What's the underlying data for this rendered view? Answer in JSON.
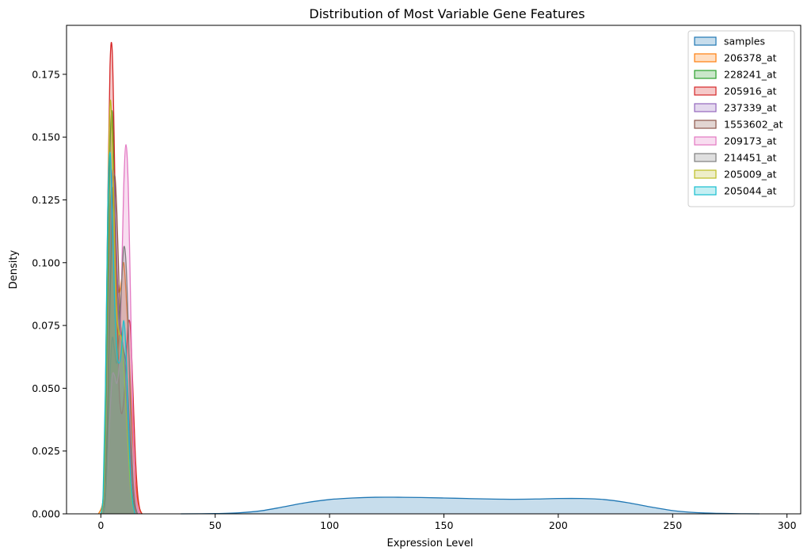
{
  "chart_data": {
    "type": "area",
    "title": "Distribution of Most Variable Gene Features",
    "xlabel": "Expression Level",
    "ylabel": "Density",
    "xlim": [
      -15,
      306
    ],
    "ylim": [
      0,
      0.1945
    ],
    "xticks": [
      0,
      50,
      100,
      150,
      200,
      250,
      300
    ],
    "yticks": [
      0.0,
      0.025,
      0.05,
      0.075,
      0.1,
      0.125,
      0.15,
      0.175
    ],
    "ytick_labels": [
      "0.000",
      "0.025",
      "0.050",
      "0.075",
      "0.100",
      "0.125",
      "0.150",
      "0.175"
    ],
    "legend_position": "top-right",
    "grid": false,
    "series": [
      {
        "name": "samples",
        "color": "#1f77b4",
        "x": [
          35,
          50,
          60,
          70,
          80,
          90,
          100,
          110,
          120,
          130,
          140,
          150,
          160,
          170,
          180,
          190,
          200,
          210,
          220,
          230,
          240,
          250,
          260,
          270,
          280,
          288
        ],
        "y": [
          0.0,
          0.0001,
          0.0004,
          0.0012,
          0.0028,
          0.0045,
          0.0057,
          0.0063,
          0.0066,
          0.0066,
          0.0065,
          0.0063,
          0.0061,
          0.0059,
          0.0058,
          0.0059,
          0.0061,
          0.0061,
          0.0057,
          0.0045,
          0.0028,
          0.0013,
          0.0005,
          0.0002,
          5e-05,
          0.0
        ]
      },
      {
        "name": "206378_at",
        "color": "#ff7f0e",
        "x": [
          -1,
          1,
          2,
          3,
          4,
          5,
          6,
          7,
          8,
          9,
          10,
          11,
          12,
          13,
          14,
          15,
          16,
          17,
          18
        ],
        "y": [
          0.0,
          0.006,
          0.03,
          0.075,
          0.118,
          0.13,
          0.115,
          0.095,
          0.088,
          0.093,
          0.1,
          0.088,
          0.07,
          0.05,
          0.03,
          0.015,
          0.006,
          0.002,
          0.0
        ]
      },
      {
        "name": "228241_at",
        "color": "#2ca02c",
        "x": [
          0,
          1,
          2,
          3,
          4,
          5,
          6,
          7,
          8,
          9,
          10,
          11,
          12,
          13,
          14,
          15,
          16
        ],
        "y": [
          0.0,
          0.005,
          0.03,
          0.09,
          0.145,
          0.16,
          0.13,
          0.095,
          0.08,
          0.072,
          0.062,
          0.045,
          0.028,
          0.014,
          0.006,
          0.002,
          0.0
        ]
      },
      {
        "name": "205916_at",
        "color": "#d62728",
        "x": [
          0,
          1,
          2,
          3,
          4,
          5,
          6,
          7,
          8,
          9,
          10,
          11,
          12,
          13,
          14,
          15,
          16,
          17,
          18
        ],
        "y": [
          0.0,
          0.006,
          0.045,
          0.12,
          0.178,
          0.184,
          0.14,
          0.085,
          0.05,
          0.04,
          0.045,
          0.06,
          0.076,
          0.073,
          0.05,
          0.025,
          0.009,
          0.002,
          0.0
        ]
      },
      {
        "name": "237339_at",
        "color": "#9467bd",
        "x": [
          1,
          2,
          3,
          4,
          5,
          6,
          7,
          8,
          9,
          10,
          11,
          12,
          13,
          14,
          15
        ],
        "y": [
          0.0,
          0.01,
          0.045,
          0.1,
          0.135,
          0.13,
          0.1,
          0.075,
          0.07,
          0.065,
          0.05,
          0.03,
          0.014,
          0.004,
          0.0
        ]
      },
      {
        "name": "1553602_at",
        "color": "#8c564b",
        "x": [
          1,
          2,
          3,
          4,
          5,
          6,
          7,
          8,
          9,
          10,
          11,
          12,
          13,
          14,
          15,
          16
        ],
        "y": [
          0.0,
          0.01,
          0.04,
          0.085,
          0.12,
          0.135,
          0.12,
          0.09,
          0.07,
          0.065,
          0.06,
          0.045,
          0.025,
          0.01,
          0.003,
          0.0
        ]
      },
      {
        "name": "209173_at",
        "color": "#e377c2",
        "x": [
          1,
          2,
          3,
          4,
          5,
          6,
          7,
          8,
          9,
          10,
          11,
          12,
          13,
          14,
          15,
          16,
          17
        ],
        "y": [
          0.0,
          0.005,
          0.02,
          0.04,
          0.055,
          0.055,
          0.052,
          0.06,
          0.09,
          0.13,
          0.147,
          0.13,
          0.085,
          0.04,
          0.012,
          0.003,
          0.0
        ]
      },
      {
        "name": "214451_at",
        "color": "#7f7f7f",
        "x": [
          1,
          2,
          3,
          4,
          5,
          6,
          7,
          8,
          9,
          10,
          11,
          12,
          13,
          14,
          15,
          16
        ],
        "y": [
          0.0,
          0.005,
          0.025,
          0.055,
          0.07,
          0.065,
          0.06,
          0.07,
          0.09,
          0.106,
          0.1,
          0.075,
          0.04,
          0.015,
          0.004,
          0.0
        ]
      },
      {
        "name": "205009_at",
        "color": "#bcbd22",
        "x": [
          0,
          1,
          2,
          3,
          4,
          5,
          6,
          7,
          8,
          9,
          10,
          11,
          12,
          13,
          14,
          15
        ],
        "y": [
          0.0,
          0.005,
          0.04,
          0.115,
          0.163,
          0.15,
          0.11,
          0.08,
          0.072,
          0.07,
          0.06,
          0.042,
          0.025,
          0.01,
          0.003,
          0.0
        ]
      },
      {
        "name": "205044_at",
        "color": "#17becf",
        "x": [
          0,
          1,
          2,
          3,
          4,
          5,
          6,
          7,
          8,
          9,
          10,
          11,
          12,
          13,
          14,
          15
        ],
        "y": [
          0.0,
          0.008,
          0.05,
          0.12,
          0.144,
          0.12,
          0.085,
          0.065,
          0.06,
          0.065,
          0.077,
          0.065,
          0.04,
          0.015,
          0.004,
          0.0
        ]
      }
    ]
  }
}
